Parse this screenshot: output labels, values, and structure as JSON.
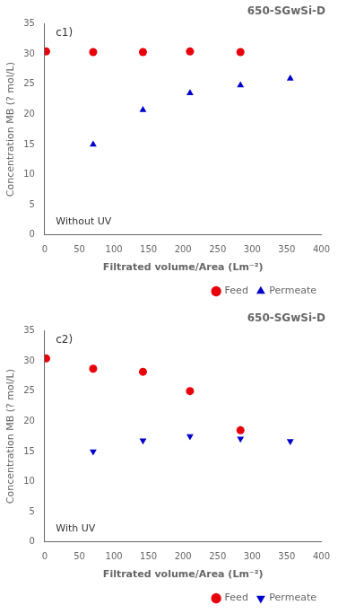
{
  "chart_data": [
    {
      "type": "scatter",
      "title": "650-SGwSi-D",
      "annotations": [
        "c1)",
        "Without UV"
      ],
      "xlabel": "Filtrated volume/Area (Lm⁻²)",
      "ylabel": "Concentration MB (? mol/L)",
      "series": [
        {
          "name": "Feed",
          "color": "#e8000b",
          "marker": "circle",
          "x": [
            2,
            70,
            142,
            210,
            283
          ],
          "values": [
            30.4,
            30.3,
            30.3,
            30.4,
            30.3
          ]
        },
        {
          "name": "Permeate",
          "color": "#0000cc",
          "marker": "triangle",
          "x": [
            70,
            142,
            210,
            283,
            355
          ],
          "values": [
            15.0,
            20.7,
            23.5,
            24.8,
            25.9
          ]
        }
      ],
      "xlim": [
        0,
        400
      ],
      "ylim": [
        0,
        35
      ],
      "xticks": [
        0,
        50,
        100,
        150,
        200,
        250,
        300,
        350,
        400
      ],
      "yticks": [
        0,
        5,
        10,
        15,
        20,
        25,
        30,
        35
      ],
      "grid": false,
      "legend": "lower right"
    },
    {
      "type": "scatter",
      "title": "650-SGwSi-D",
      "annotations": [
        "c2)",
        "With UV"
      ],
      "xlabel": "Filtrated volume/Area (Lm⁻²)",
      "ylabel": "Concentration MB (? mol/L)",
      "series": [
        {
          "name": "Feed",
          "color": "#e8000b",
          "marker": "circle",
          "x": [
            2,
            70,
            142,
            210,
            283
          ],
          "values": [
            30.4,
            28.7,
            28.2,
            25.0,
            18.5
          ]
        },
        {
          "name": "Permeate",
          "color": "#0000cc",
          "marker": "triangle_down",
          "x": [
            70,
            142,
            210,
            283,
            355
          ],
          "values": [
            15.0,
            16.8,
            17.5,
            17.1,
            16.7
          ]
        }
      ],
      "xlim": [
        0,
        400
      ],
      "ylim": [
        0,
        35
      ],
      "xticks": [
        0,
        50,
        100,
        150,
        200,
        250,
        300,
        350,
        400
      ],
      "yticks": [
        0,
        5,
        10,
        15,
        20,
        25,
        30,
        35
      ],
      "grid": false,
      "legend": "lower right"
    }
  ]
}
